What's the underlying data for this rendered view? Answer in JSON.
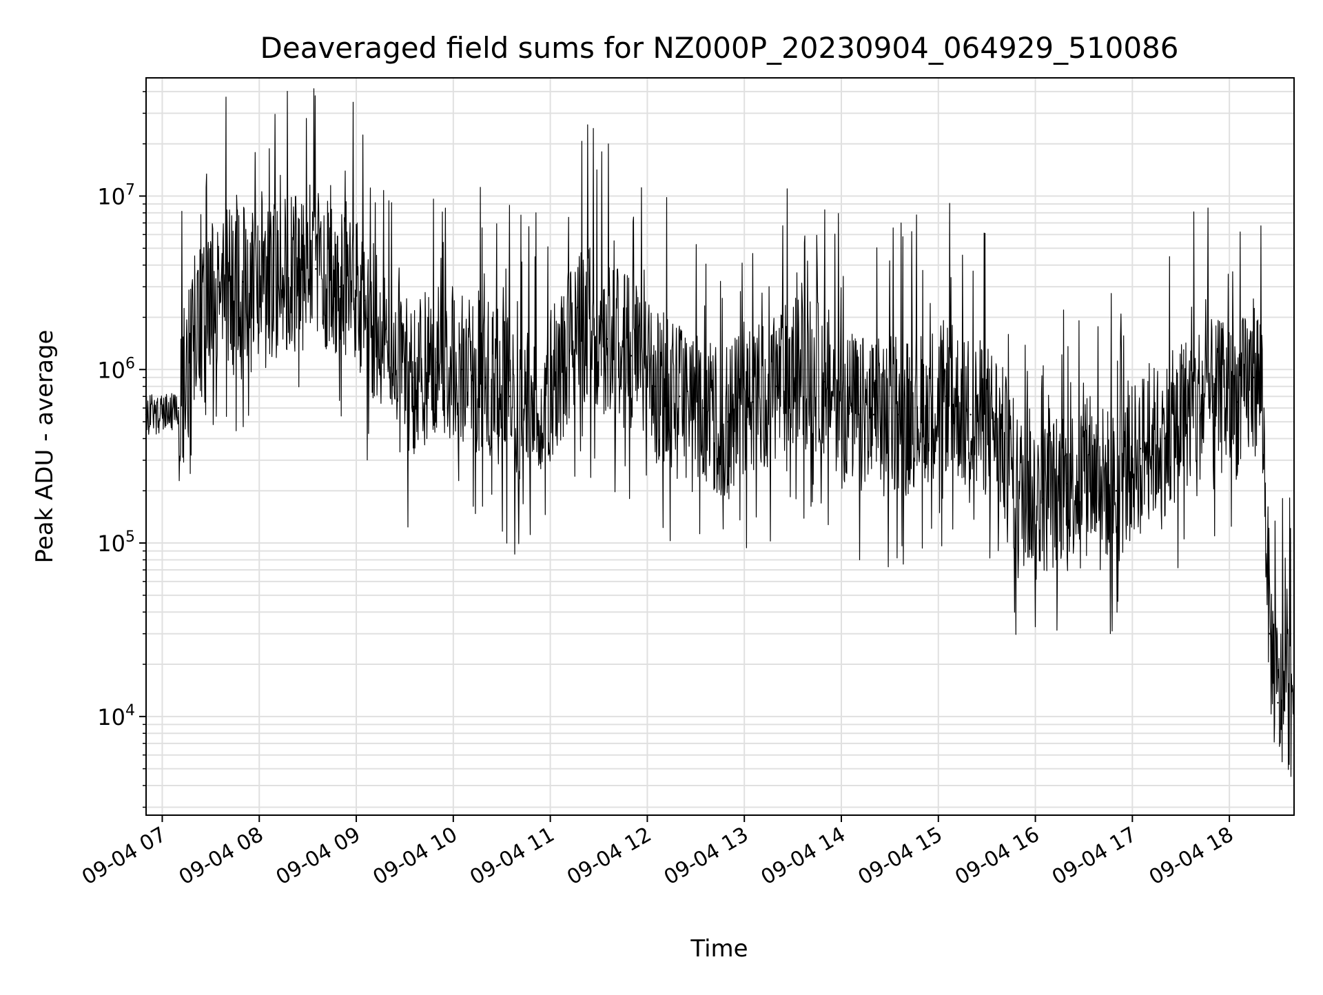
{
  "chart_data": {
    "type": "line",
    "title": "Deaveraged field sums for NZ000P_20230904_064929_510086",
    "xlabel": "Time",
    "ylabel": "Peak ADU - average",
    "xscale": "time",
    "yscale": "log",
    "xlim": [
      "2023-09-04 06:50",
      "2023-09-04 18:40"
    ],
    "ylim": [
      2700,
      48000000
    ],
    "grid": true,
    "legend": "none",
    "line_color": "#000000",
    "grid_color": "#e0e0e0",
    "x_ticks": [
      {
        "t": "2023-09-04 07:00",
        "label": "09-04 07"
      },
      {
        "t": "2023-09-04 08:00",
        "label": "09-04 08"
      },
      {
        "t": "2023-09-04 09:00",
        "label": "09-04 09"
      },
      {
        "t": "2023-09-04 10:00",
        "label": "09-04 10"
      },
      {
        "t": "2023-09-04 11:00",
        "label": "09-04 11"
      },
      {
        "t": "2023-09-04 12:00",
        "label": "09-04 12"
      },
      {
        "t": "2023-09-04 13:00",
        "label": "09-04 13"
      },
      {
        "t": "2023-09-04 14:00",
        "label": "09-04 14"
      },
      {
        "t": "2023-09-04 15:00",
        "label": "09-04 15"
      },
      {
        "t": "2023-09-04 16:00",
        "label": "09-04 16"
      },
      {
        "t": "2023-09-04 17:00",
        "label": "09-04 17"
      },
      {
        "t": "2023-09-04 18:00",
        "label": "09-04 18"
      }
    ],
    "y_ticks": [
      {
        "value": 10000,
        "base": "10",
        "exp": "4"
      },
      {
        "value": 100000,
        "base": "10",
        "exp": "5"
      },
      {
        "value": 1000000,
        "base": "10",
        "exp": "6"
      },
      {
        "value": 10000000,
        "base": "10",
        "exp": "7"
      }
    ],
    "series": [
      {
        "x": [
          "2023-09-04 06:50",
          "2023-09-04 07:00",
          "2023-09-04 07:10",
          "2023-09-04 07:20",
          "2023-09-04 07:35",
          "2023-09-04 07:50",
          "2023-09-04 08:05",
          "2023-09-04 08:20",
          "2023-09-04 08:35",
          "2023-09-04 08:50",
          "2023-09-04 09:05",
          "2023-09-04 09:20",
          "2023-09-04 09:35",
          "2023-09-04 09:50",
          "2023-09-04 10:05",
          "2023-09-04 10:20",
          "2023-09-04 10:35",
          "2023-09-04 10:50",
          "2023-09-04 11:05",
          "2023-09-04 11:20",
          "2023-09-04 11:35",
          "2023-09-04 11:50",
          "2023-09-04 12:05",
          "2023-09-04 12:20",
          "2023-09-04 12:35",
          "2023-09-04 12:50",
          "2023-09-04 13:05",
          "2023-09-04 13:20",
          "2023-09-04 13:35",
          "2023-09-04 13:50",
          "2023-09-04 14:05",
          "2023-09-04 14:20",
          "2023-09-04 14:35",
          "2023-09-04 14:50",
          "2023-09-04 15:05",
          "2023-09-04 15:20",
          "2023-09-04 15:35",
          "2023-09-04 15:50",
          "2023-09-04 16:05",
          "2023-09-04 16:20",
          "2023-09-04 16:35",
          "2023-09-04 16:50",
          "2023-09-04 17:05",
          "2023-09-04 17:20",
          "2023-09-04 17:35",
          "2023-09-04 17:50",
          "2023-09-04 18:05",
          "2023-09-04 18:15",
          "2023-09-04 18:20",
          "2023-09-04 18:25",
          "2023-09-04 18:30",
          "2023-09-04 18:40"
        ],
        "values": [
          550000,
          560000,
          600000,
          1600000,
          3000000,
          3200000,
          3300000,
          3500000,
          3800000,
          3000000,
          2500000,
          1200000,
          900000,
          1100000,
          1000000,
          900000,
          700000,
          600000,
          1000000,
          2000000,
          1500000,
          1200000,
          800000,
          700000,
          600000,
          500000,
          650000,
          800000,
          1000000,
          850000,
          600000,
          550000,
          550000,
          600000,
          700000,
          550000,
          500000,
          200000,
          180000,
          220000,
          250000,
          200000,
          350000,
          400000,
          600000,
          700000,
          650000,
          900000,
          850000,
          30000,
          12000,
          15000
        ]
      }
    ]
  }
}
